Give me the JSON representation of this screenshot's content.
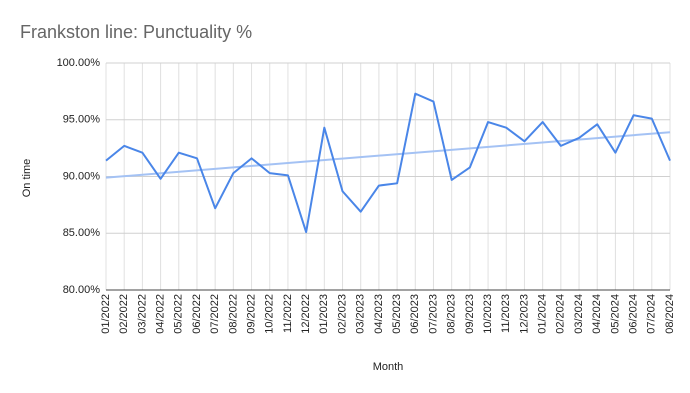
{
  "chart_data": {
    "type": "line",
    "title": "Frankston line: Punctuality %",
    "x_label": "Month",
    "y_label": "On time",
    "categories": [
      "01/2022",
      "02/2022",
      "03/2022",
      "04/2022",
      "05/2022",
      "06/2022",
      "07/2022",
      "08/2022",
      "09/2022",
      "10/2022",
      "11/2022",
      "12/2022",
      "01/2023",
      "02/2023",
      "03/2023",
      "04/2023",
      "05/2023",
      "06/2023",
      "07/2023",
      "08/2023",
      "09/2023",
      "10/2023",
      "11/2023",
      "12/2023",
      "01/2024",
      "02/2024",
      "03/2024",
      "04/2024",
      "05/2024",
      "06/2024",
      "07/2024",
      "08/2024"
    ],
    "series": [
      {
        "name": "On time",
        "color": "#4a86e8",
        "values": [
          91.4,
          92.7,
          92.1,
          89.8,
          92.1,
          91.6,
          87.2,
          90.3,
          91.6,
          90.3,
          90.1,
          85.1,
          94.3,
          88.7,
          86.9,
          89.2,
          89.4,
          97.3,
          96.6,
          89.7,
          90.8,
          94.8,
          94.3,
          93.1,
          94.8,
          92.7,
          93.4,
          94.6,
          92.1,
          95.4,
          95.1,
          91.4
        ]
      }
    ],
    "trendline": {
      "color": "#a4c2f4",
      "values": [
        89.9,
        93.9
      ]
    },
    "ylim": [
      80,
      100
    ],
    "yticks": [
      {
        "value": 80,
        "label": "80.00%"
      },
      {
        "value": 85,
        "label": "85.00%"
      },
      {
        "value": 90,
        "label": "90.00%"
      },
      {
        "value": 95,
        "label": "95.00%"
      },
      {
        "value": 100,
        "label": "100.00%"
      }
    ],
    "grid": true
  }
}
